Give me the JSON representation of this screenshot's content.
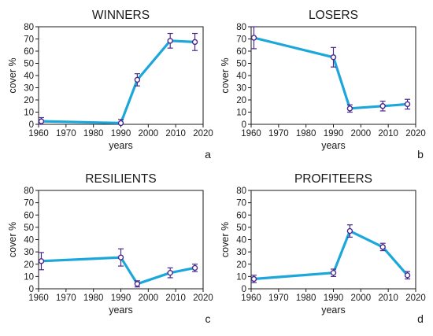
{
  "colors": {
    "line": "#1ca7dc",
    "marker": "#4a2a8c",
    "marker_fill": "#ffffff",
    "axis": "#1a1a1a"
  },
  "chart_data": [
    {
      "type": "line",
      "title": "WINNERS",
      "xlabel": "years",
      "ylabel": "cover %",
      "panel_letter": "a",
      "xlim": [
        1960,
        2020
      ],
      "ylim": [
        0,
        80
      ],
      "xticks": [
        "1960",
        "1970",
        "1980",
        "1990",
        "2000",
        "2010",
        "2020"
      ],
      "yticks": [
        "0",
        "10",
        "20",
        "30",
        "40",
        "50",
        "60",
        "70",
        "80"
      ],
      "grid": false,
      "points": [
        {
          "x": 1961,
          "y": 2.5,
          "err": 3
        },
        {
          "x": 1990,
          "y": 1,
          "err": 3
        },
        {
          "x": 1996,
          "y": 36.5,
          "err": 5
        },
        {
          "x": 2008,
          "y": 68.5,
          "err": 6
        },
        {
          "x": 2017,
          "y": 67.5,
          "err": 7
        }
      ]
    },
    {
      "type": "line",
      "title": "LOSERS",
      "xlabel": "years",
      "ylabel": "cover %",
      "panel_letter": "b",
      "xlim": [
        1960,
        2020
      ],
      "ylim": [
        0,
        80
      ],
      "xticks": [
        "1960",
        "1970",
        "1980",
        "1990",
        "2000",
        "2010",
        "2020"
      ],
      "yticks": [
        "0",
        "10",
        "20",
        "30",
        "40",
        "50",
        "60",
        "70",
        "80"
      ],
      "grid": false,
      "points": [
        {
          "x": 1961,
          "y": 71,
          "err": 9
        },
        {
          "x": 1990,
          "y": 55,
          "err": 8
        },
        {
          "x": 1996,
          "y": 13,
          "err": 3
        },
        {
          "x": 2008,
          "y": 15,
          "err": 4
        },
        {
          "x": 2017,
          "y": 16.5,
          "err": 4
        }
      ]
    },
    {
      "type": "line",
      "title": "RESILIENTS",
      "xlabel": "years",
      "ylabel": "cover %",
      "panel_letter": "c",
      "xlim": [
        1960,
        2020
      ],
      "ylim": [
        0,
        80
      ],
      "xticks": [
        "1960",
        "1970",
        "1980",
        "1990",
        "2000",
        "2010",
        "2020"
      ],
      "yticks": [
        "0",
        "10",
        "20",
        "30",
        "40",
        "50",
        "60",
        "70",
        "80"
      ],
      "grid": false,
      "points": [
        {
          "x": 1961,
          "y": 22.5,
          "err": 7
        },
        {
          "x": 1990,
          "y": 25.5,
          "err": 7
        },
        {
          "x": 1996,
          "y": 4,
          "err": 2.5
        },
        {
          "x": 2008,
          "y": 13,
          "err": 4
        },
        {
          "x": 2017,
          "y": 17,
          "err": 3
        }
      ]
    },
    {
      "type": "line",
      "title": "PROFITEERS",
      "xlabel": "years",
      "ylabel": "cover %",
      "panel_letter": "d",
      "xlim": [
        1960,
        2020
      ],
      "ylim": [
        0,
        80
      ],
      "xticks": [
        "1960",
        "1970",
        "1980",
        "1990",
        "2000",
        "2010",
        "2020"
      ],
      "yticks": [
        "0",
        "10",
        "20",
        "30",
        "40",
        "50",
        "60",
        "70",
        "80"
      ],
      "grid": false,
      "points": [
        {
          "x": 1961,
          "y": 8,
          "err": 3
        },
        {
          "x": 1990,
          "y": 13,
          "err": 3
        },
        {
          "x": 1996,
          "y": 47,
          "err": 5
        },
        {
          "x": 2008,
          "y": 34,
          "err": 3
        },
        {
          "x": 2017,
          "y": 11,
          "err": 3
        }
      ]
    }
  ]
}
